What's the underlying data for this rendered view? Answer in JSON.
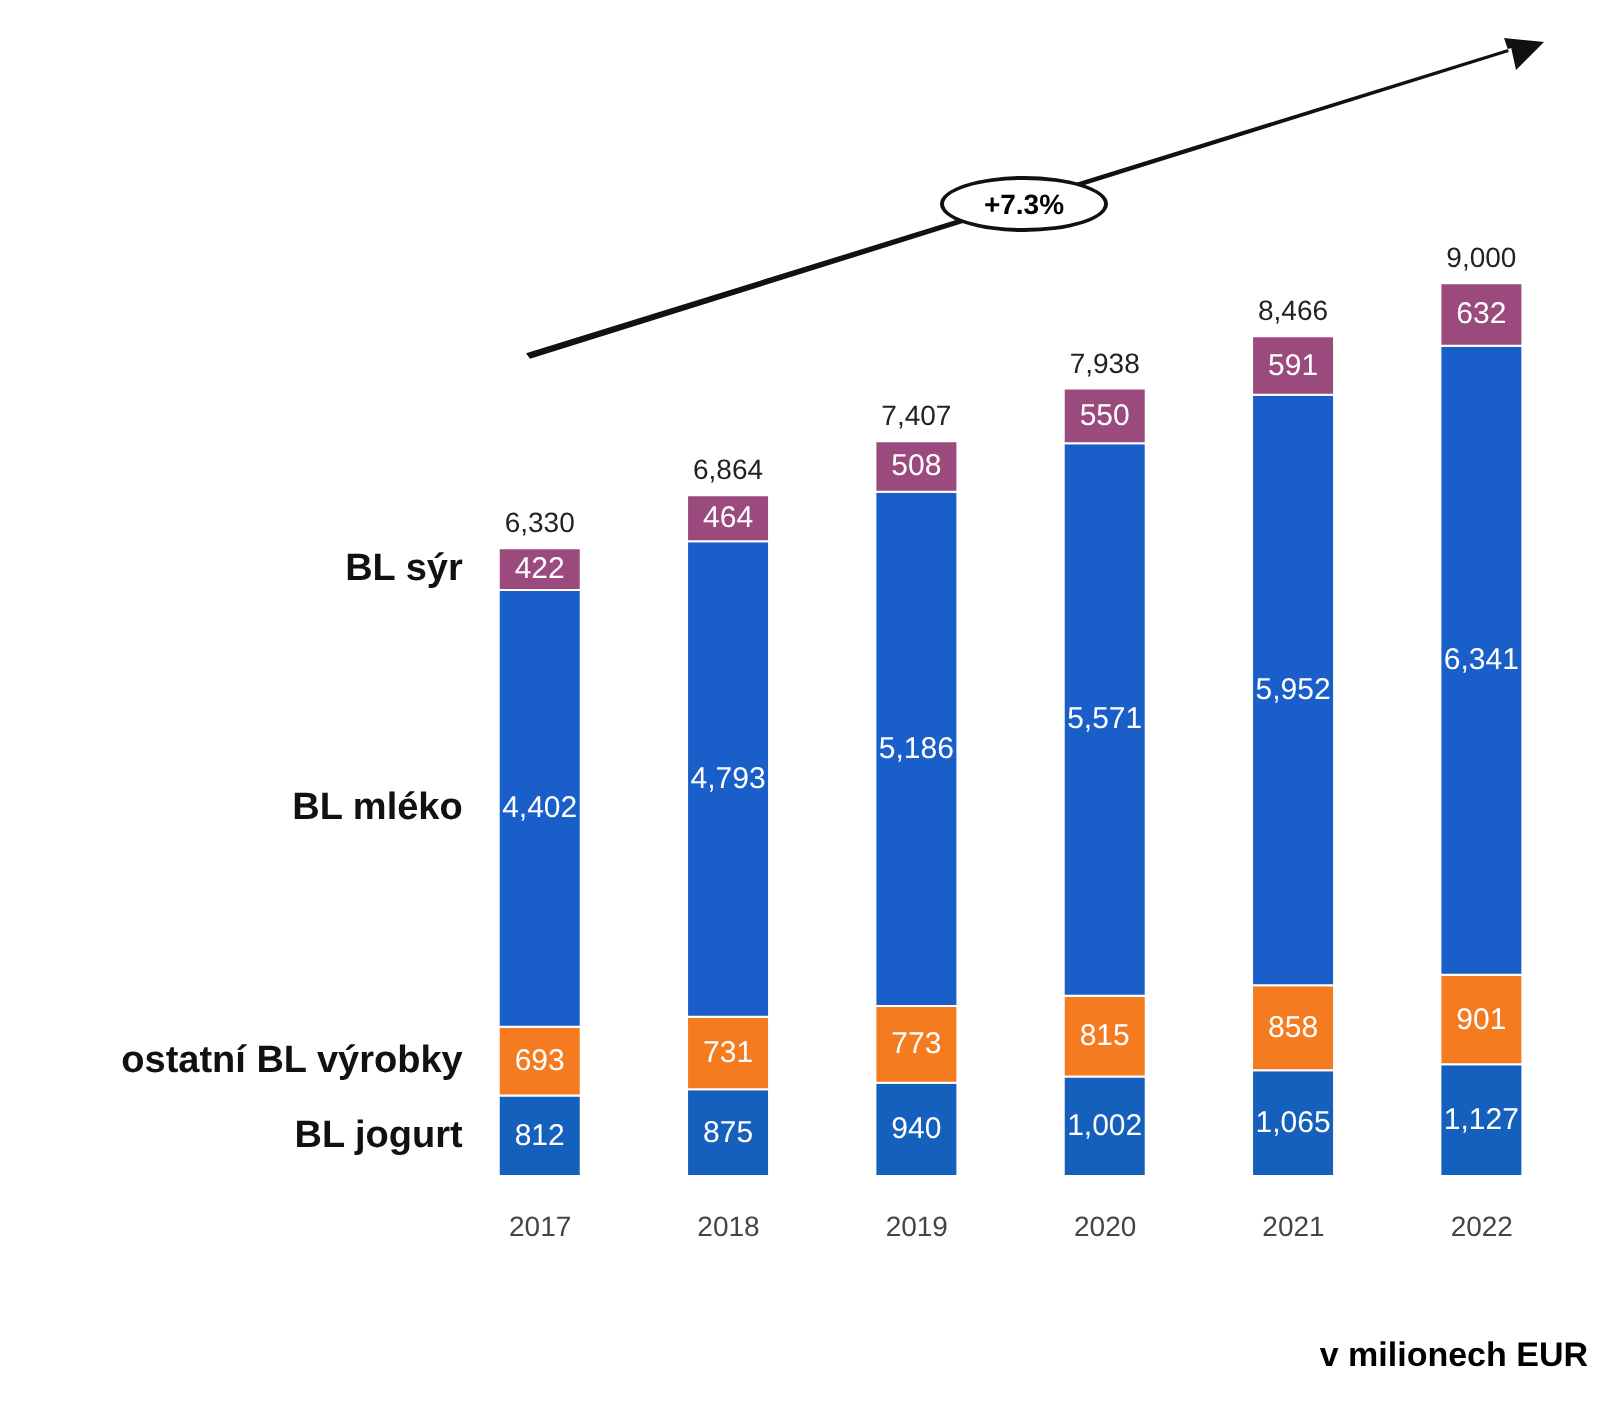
{
  "chart_data": {
    "type": "bar",
    "stacked": true,
    "categories": [
      "2017",
      "2018",
      "2019",
      "2020",
      "2021",
      "2022"
    ],
    "series": [
      {
        "name": "BL jogurt",
        "color": "#1560bd",
        "values": [
          812,
          875,
          940,
          1002,
          1065,
          1127
        ],
        "value_labels": [
          "812",
          "875",
          "940",
          "1,002",
          "1,065",
          "1,127"
        ]
      },
      {
        "name": "ostatní BL výrobky",
        "color": "#f47b20",
        "values": [
          693,
          731,
          773,
          815,
          858,
          901
        ],
        "value_labels": [
          "693",
          "731",
          "773",
          "815",
          "858",
          "901"
        ]
      },
      {
        "name": "BL mléko",
        "color": "#1a5fc9",
        "values": [
          4402,
          4793,
          5186,
          5571,
          5952,
          6341
        ],
        "value_labels": [
          "4,402",
          "4,793",
          "5,186",
          "5,571",
          "5,952",
          "6,341"
        ]
      },
      {
        "name": "BL sýr",
        "color": "#9a4a7c",
        "values": [
          422,
          464,
          508,
          550,
          591,
          632
        ],
        "value_labels": [
          "422",
          "464",
          "508",
          "550",
          "591",
          "632"
        ]
      }
    ],
    "totals": [
      "6,330",
      "6,864",
      "7,407",
      "7,938",
      "8,466",
      "9,000"
    ],
    "legend": "left",
    "annotations": [
      "+7.3%",
      "v milionech EUR"
    ]
  }
}
